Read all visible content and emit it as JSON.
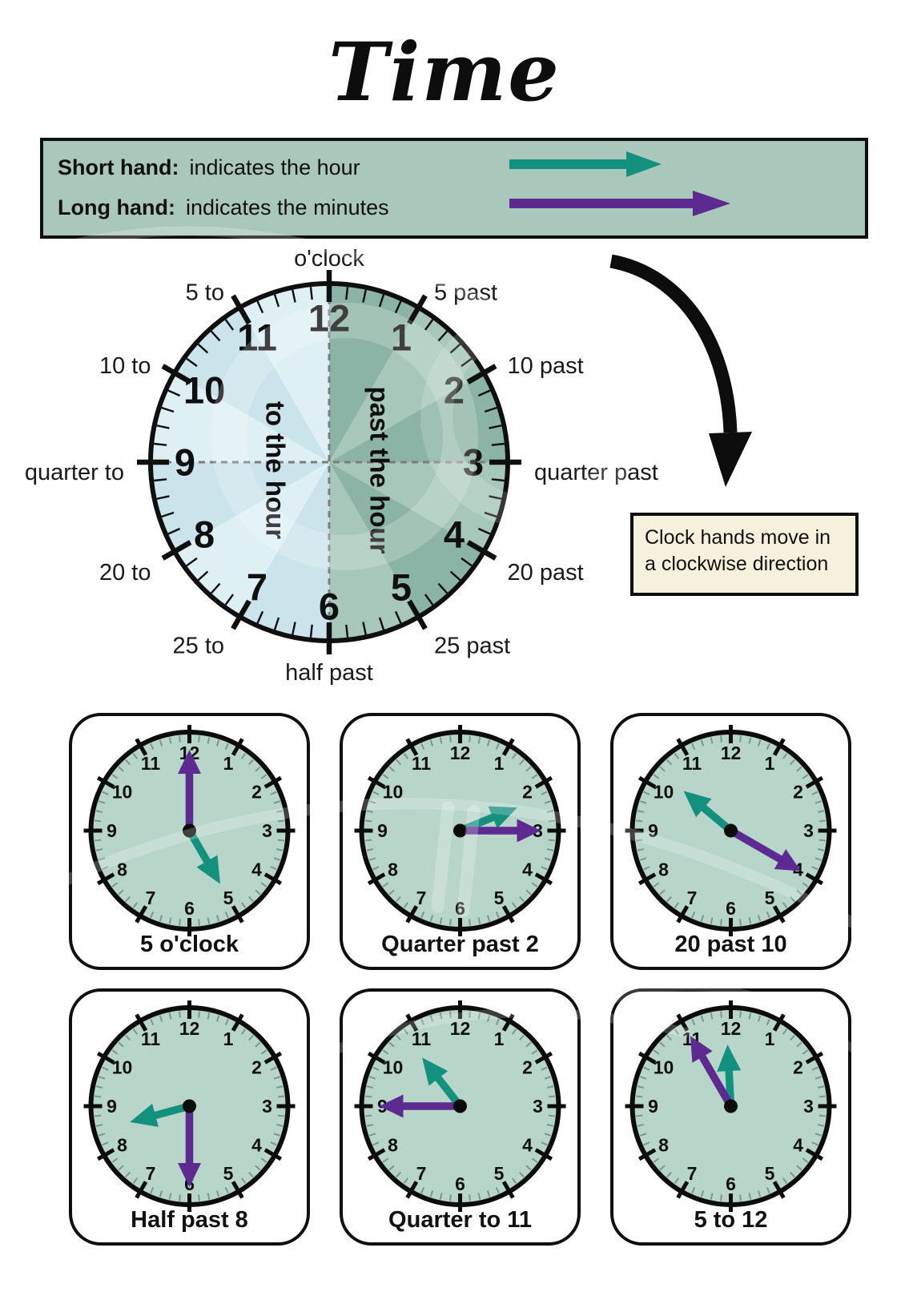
{
  "page": {
    "title": "Time"
  },
  "colors": {
    "teal": "#14907f",
    "purple": "#5c2a90",
    "ink": "#0f0f0f",
    "legend_bg": "#a9c7bb",
    "note_bg": "#f5f1dd",
    "small_clock_face": "#b7d5c9",
    "minor_tick": "#7f948c",
    "dash_gray": "#7d7d7d",
    "wedge_green_dark": "#8cb4a6",
    "wedge_green_light": "#a6c7b9",
    "wedge_blue_dark": "#cbe4ec",
    "wedge_blue_light": "#dff0f5"
  },
  "legend": {
    "rows": [
      {
        "term": "Short hand:",
        "desc": "indicates the hour",
        "hand": "short"
      },
      {
        "term": "Long hand:",
        "desc": "indicates the minutes",
        "hand": "long"
      }
    ]
  },
  "big_clock": {
    "numbers": [
      "12",
      "1",
      "2",
      "3",
      "4",
      "5",
      "6",
      "7",
      "8",
      "9",
      "10",
      "11"
    ],
    "outer_labels": [
      {
        "minute": 0,
        "text": "o'clock"
      },
      {
        "minute": 5,
        "text": "5 past"
      },
      {
        "minute": 10,
        "text": "10 past"
      },
      {
        "minute": 15,
        "text": "quarter past"
      },
      {
        "minute": 20,
        "text": "20 past"
      },
      {
        "minute": 25,
        "text": "25 past"
      },
      {
        "minute": 30,
        "text": "half past"
      },
      {
        "minute": 35,
        "text": "25 to"
      },
      {
        "minute": 40,
        "text": "20 to"
      },
      {
        "minute": 45,
        "text": "quarter to"
      },
      {
        "minute": 50,
        "text": "10 to"
      },
      {
        "minute": 55,
        "text": "5 to"
      }
    ],
    "right_half_label": "past the hour",
    "left_half_label": "to the hour"
  },
  "direction_note": {
    "line1": "Clock hands move in",
    "line2": "a clockwise direction"
  },
  "example_clocks": [
    {
      "label": "5 o'clock",
      "hour_angle": 150,
      "minute_angle": 0
    },
    {
      "label": "Quarter past 2",
      "hour_angle": 68,
      "minute_angle": 90
    },
    {
      "label": "20 past 10",
      "hour_angle": 310,
      "minute_angle": 120
    },
    {
      "label": "Half past 8",
      "hour_angle": 255,
      "minute_angle": 180
    },
    {
      "label": "Quarter to 11",
      "hour_angle": 322,
      "minute_angle": 270
    },
    {
      "label": "5 to 12",
      "hour_angle": 357,
      "minute_angle": 330
    }
  ]
}
